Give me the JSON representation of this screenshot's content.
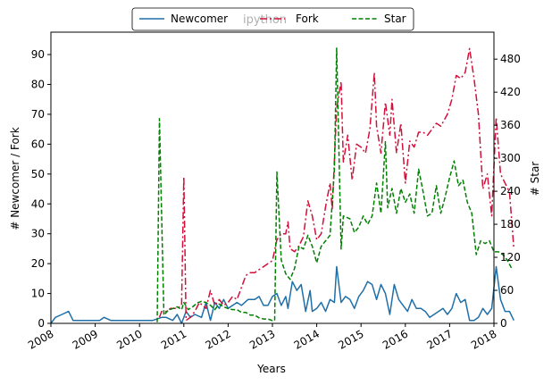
{
  "chart_data": {
    "type": "line",
    "title": "",
    "watermark": "ipython",
    "xlabel": "Years",
    "ylabel_left": "# Newcomer / Fork",
    "ylabel_right": "# Star",
    "xlim": [
      2008.0,
      2018.0
    ],
    "ylim_left": [
      0,
      97.5
    ],
    "ylim_right": [
      0,
      529
    ],
    "x_ticks": [
      "2008",
      "2009",
      "2010",
      "2011",
      "2012",
      "2013",
      "2014",
      "2015",
      "2016",
      "2017",
      "2018"
    ],
    "y_ticks_left": [
      "0",
      "10",
      "20",
      "30",
      "40",
      "50",
      "60",
      "70",
      "80",
      "90"
    ],
    "y_ticks_right": [
      "0",
      "60",
      "120",
      "180",
      "240",
      "300",
      "360",
      "420",
      "480"
    ],
    "grid": false,
    "legend": {
      "placement": "top-center",
      "entries": [
        "Newcomer",
        "Fork",
        "Star"
      ]
    },
    "series": [
      {
        "name": "Newcomer",
        "axis": "left",
        "color": "#1f6fa8",
        "dash": "solid",
        "points": [
          [
            2008.0,
            0
          ],
          [
            2008.1,
            2
          ],
          [
            2008.25,
            3
          ],
          [
            2008.4,
            4
          ],
          [
            2008.5,
            1
          ],
          [
            2008.7,
            1
          ],
          [
            2008.9,
            1
          ],
          [
            2009.1,
            1
          ],
          [
            2009.2,
            2
          ],
          [
            2009.35,
            1
          ],
          [
            2009.6,
            1
          ],
          [
            2009.9,
            1
          ],
          [
            2010.1,
            1
          ],
          [
            2010.3,
            1
          ],
          [
            2010.5,
            2
          ],
          [
            2010.6,
            2
          ],
          [
            2010.75,
            1
          ],
          [
            2010.85,
            3
          ],
          [
            2010.95,
            0
          ],
          [
            2011.05,
            4
          ],
          [
            2011.15,
            2
          ],
          [
            2011.25,
            3
          ],
          [
            2011.4,
            2
          ],
          [
            2011.5,
            7
          ],
          [
            2011.6,
            1
          ],
          [
            2011.7,
            7
          ],
          [
            2011.8,
            5
          ],
          [
            2011.9,
            8
          ],
          [
            2012.0,
            5
          ],
          [
            2012.1,
            6
          ],
          [
            2012.2,
            7
          ],
          [
            2012.3,
            6
          ],
          [
            2012.45,
            8
          ],
          [
            2012.6,
            8
          ],
          [
            2012.7,
            9
          ],
          [
            2012.8,
            6
          ],
          [
            2012.9,
            6
          ],
          [
            2013.0,
            9
          ],
          [
            2013.1,
            10
          ],
          [
            2013.2,
            6
          ],
          [
            2013.3,
            9
          ],
          [
            2013.35,
            5
          ],
          [
            2013.45,
            14
          ],
          [
            2013.55,
            11
          ],
          [
            2013.65,
            13
          ],
          [
            2013.75,
            4
          ],
          [
            2013.85,
            11
          ],
          [
            2013.9,
            4
          ],
          [
            2014.0,
            5
          ],
          [
            2014.1,
            7
          ],
          [
            2014.2,
            4
          ],
          [
            2014.3,
            8
          ],
          [
            2014.4,
            7
          ],
          [
            2014.45,
            19
          ],
          [
            2014.55,
            7
          ],
          [
            2014.65,
            9
          ],
          [
            2014.75,
            8
          ],
          [
            2014.85,
            5
          ],
          [
            2014.95,
            9
          ],
          [
            2015.05,
            11
          ],
          [
            2015.15,
            14
          ],
          [
            2015.25,
            13
          ],
          [
            2015.35,
            8
          ],
          [
            2015.45,
            13
          ],
          [
            2015.55,
            10
          ],
          [
            2015.65,
            3
          ],
          [
            2015.75,
            13
          ],
          [
            2015.85,
            8
          ],
          [
            2015.95,
            6
          ],
          [
            2016.05,
            4
          ],
          [
            2016.15,
            8
          ],
          [
            2016.25,
            5
          ],
          [
            2016.35,
            5
          ],
          [
            2016.45,
            4
          ],
          [
            2016.55,
            2
          ],
          [
            2016.65,
            3
          ],
          [
            2016.75,
            4
          ],
          [
            2016.85,
            5
          ],
          [
            2016.95,
            3
          ],
          [
            2017.05,
            5
          ],
          [
            2017.15,
            10
          ],
          [
            2017.25,
            7
          ],
          [
            2017.35,
            8
          ],
          [
            2017.45,
            1
          ],
          [
            2017.55,
            1
          ],
          [
            2017.65,
            2
          ],
          [
            2017.75,
            5
          ],
          [
            2017.85,
            3
          ],
          [
            2017.95,
            5
          ],
          [
            2018.05,
            19
          ],
          [
            2018.15,
            8
          ],
          [
            2018.25,
            4
          ],
          [
            2018.35,
            4
          ],
          [
            2018.45,
            1
          ]
        ]
      },
      {
        "name": "Fork",
        "axis": "left",
        "color": "#d0103a",
        "dash": "dashdot",
        "points": [
          [
            2010.45,
            2
          ],
          [
            2010.5,
            4
          ],
          [
            2010.6,
            4
          ],
          [
            2010.7,
            5
          ],
          [
            2010.85,
            5
          ],
          [
            2010.95,
            6
          ],
          [
            2011.0,
            49
          ],
          [
            2011.05,
            1
          ],
          [
            2011.15,
            2
          ],
          [
            2011.25,
            4
          ],
          [
            2011.35,
            7
          ],
          [
            2011.5,
            5
          ],
          [
            2011.6,
            11
          ],
          [
            2011.7,
            6
          ],
          [
            2011.8,
            8
          ],
          [
            2011.9,
            6
          ],
          [
            2012.0,
            7
          ],
          [
            2012.1,
            9
          ],
          [
            2012.2,
            8
          ],
          [
            2012.3,
            12
          ],
          [
            2012.4,
            16
          ],
          [
            2012.5,
            17
          ],
          [
            2012.6,
            17
          ],
          [
            2012.7,
            18
          ],
          [
            2012.8,
            19
          ],
          [
            2012.9,
            20
          ],
          [
            2013.0,
            21
          ],
          [
            2013.1,
            28
          ],
          [
            2013.2,
            30
          ],
          [
            2013.3,
            30
          ],
          [
            2013.35,
            34
          ],
          [
            2013.4,
            25
          ],
          [
            2013.5,
            24
          ],
          [
            2013.6,
            26
          ],
          [
            2013.7,
            29
          ],
          [
            2013.8,
            41
          ],
          [
            2013.9,
            36
          ],
          [
            2014.0,
            28
          ],
          [
            2014.1,
            30
          ],
          [
            2014.2,
            39
          ],
          [
            2014.3,
            47
          ],
          [
            2014.35,
            38
          ],
          [
            2014.45,
            72
          ],
          [
            2014.55,
            81
          ],
          [
            2014.6,
            54
          ],
          [
            2014.7,
            63
          ],
          [
            2014.8,
            48
          ],
          [
            2014.9,
            60
          ],
          [
            2015.0,
            59
          ],
          [
            2015.1,
            57
          ],
          [
            2015.2,
            65
          ],
          [
            2015.3,
            84
          ],
          [
            2015.35,
            66
          ],
          [
            2015.45,
            57
          ],
          [
            2015.55,
            74
          ],
          [
            2015.65,
            63
          ],
          [
            2015.7,
            75
          ],
          [
            2015.8,
            57
          ],
          [
            2015.9,
            67
          ],
          [
            2016.0,
            47
          ],
          [
            2016.1,
            61
          ],
          [
            2016.2,
            59
          ],
          [
            2016.3,
            64
          ],
          [
            2016.4,
            64
          ],
          [
            2016.5,
            63
          ],
          [
            2016.6,
            65
          ],
          [
            2016.7,
            67
          ],
          [
            2016.8,
            66
          ],
          [
            2016.95,
            70
          ],
          [
            2017.05,
            75
          ],
          [
            2017.15,
            83
          ],
          [
            2017.25,
            82
          ],
          [
            2017.35,
            84
          ],
          [
            2017.45,
            92
          ],
          [
            2017.55,
            82
          ],
          [
            2017.65,
            70
          ],
          [
            2017.75,
            45
          ],
          [
            2017.85,
            50
          ],
          [
            2017.95,
            36
          ],
          [
            2018.05,
            69
          ],
          [
            2018.15,
            50
          ],
          [
            2018.25,
            47
          ],
          [
            2018.35,
            44
          ],
          [
            2018.45,
            25
          ]
        ]
      },
      {
        "name": "Star",
        "axis": "right",
        "color": "#008000",
        "dash": "dashed",
        "points": [
          [
            2010.4,
            2
          ],
          [
            2010.45,
            372
          ],
          [
            2010.55,
            15
          ],
          [
            2010.65,
            24
          ],
          [
            2010.75,
            27
          ],
          [
            2010.85,
            30
          ],
          [
            2010.95,
            25
          ],
          [
            2011.0,
            38
          ],
          [
            2011.1,
            25
          ],
          [
            2011.2,
            30
          ],
          [
            2011.3,
            37
          ],
          [
            2011.4,
            40
          ],
          [
            2011.5,
            38
          ],
          [
            2011.6,
            33
          ],
          [
            2011.7,
            25
          ],
          [
            2011.8,
            35
          ],
          [
            2011.9,
            30
          ],
          [
            2012.0,
            27
          ],
          [
            2012.1,
            25
          ],
          [
            2012.2,
            25
          ],
          [
            2012.3,
            20
          ],
          [
            2012.4,
            20
          ],
          [
            2012.5,
            15
          ],
          [
            2012.6,
            15
          ],
          [
            2012.7,
            10
          ],
          [
            2012.8,
            8
          ],
          [
            2012.9,
            8
          ],
          [
            2013.0,
            5
          ],
          [
            2013.05,
            5
          ],
          [
            2013.1,
            275
          ],
          [
            2013.2,
            115
          ],
          [
            2013.3,
            90
          ],
          [
            2013.4,
            80
          ],
          [
            2013.5,
            100
          ],
          [
            2013.6,
            140
          ],
          [
            2013.7,
            135
          ],
          [
            2013.8,
            160
          ],
          [
            2013.9,
            140
          ],
          [
            2014.0,
            110
          ],
          [
            2014.1,
            140
          ],
          [
            2014.2,
            150
          ],
          [
            2014.3,
            160
          ],
          [
            2014.4,
            280
          ],
          [
            2014.45,
            500
          ],
          [
            2014.55,
            135
          ],
          [
            2014.6,
            195
          ],
          [
            2014.75,
            190
          ],
          [
            2014.85,
            165
          ],
          [
            2014.95,
            175
          ],
          [
            2015.05,
            195
          ],
          [
            2015.15,
            180
          ],
          [
            2015.25,
            195
          ],
          [
            2015.35,
            255
          ],
          [
            2015.45,
            200
          ],
          [
            2015.55,
            330
          ],
          [
            2015.6,
            210
          ],
          [
            2015.7,
            245
          ],
          [
            2015.8,
            200
          ],
          [
            2015.9,
            245
          ],
          [
            2016.0,
            220
          ],
          [
            2016.1,
            235
          ],
          [
            2016.2,
            200
          ],
          [
            2016.3,
            280
          ],
          [
            2016.4,
            240
          ],
          [
            2016.5,
            195
          ],
          [
            2016.6,
            200
          ],
          [
            2016.7,
            250
          ],
          [
            2016.8,
            200
          ],
          [
            2016.9,
            230
          ],
          [
            2017.0,
            265
          ],
          [
            2017.1,
            295
          ],
          [
            2017.2,
            250
          ],
          [
            2017.3,
            260
          ],
          [
            2017.4,
            220
          ],
          [
            2017.5,
            200
          ],
          [
            2017.6,
            125
          ],
          [
            2017.7,
            150
          ],
          [
            2017.8,
            145
          ],
          [
            2017.9,
            150
          ],
          [
            2018.0,
            130
          ],
          [
            2018.1,
            130
          ],
          [
            2018.2,
            125
          ],
          [
            2018.3,
            115
          ],
          [
            2018.4,
            100
          ]
        ]
      }
    ]
  }
}
